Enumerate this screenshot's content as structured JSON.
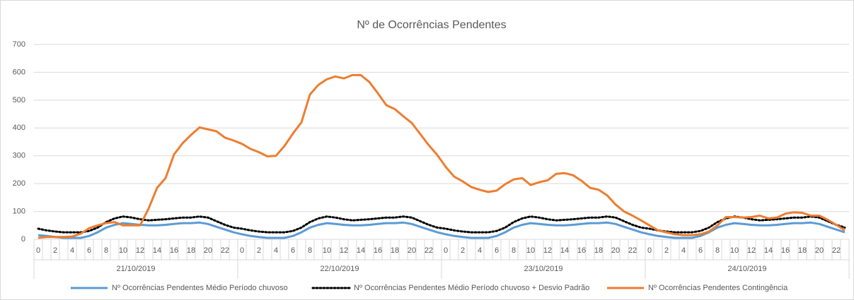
{
  "chart_data": {
    "type": "line",
    "title": "Nº de Ocorrências Pendentes",
    "categories": [
      "0",
      null,
      "2",
      null,
      "4",
      null,
      "6",
      null,
      "8",
      null,
      "10",
      null,
      "12",
      null,
      "14",
      null,
      "16",
      null,
      "18",
      null,
      "20",
      null,
      "22",
      null,
      "0",
      null,
      "2",
      null,
      "4",
      null,
      "6",
      null,
      "8",
      null,
      "10",
      null,
      "12",
      null,
      "14",
      null,
      "16",
      null,
      "18",
      null,
      "20",
      null,
      "22",
      null,
      "0",
      null,
      "2",
      null,
      "4",
      null,
      "6",
      null,
      "8",
      null,
      "10",
      null,
      "12",
      null,
      "14",
      null,
      "16",
      null,
      "18",
      null,
      "20",
      null,
      "22",
      null,
      "0",
      null,
      "2",
      null,
      "4",
      null,
      "6",
      null,
      "8",
      null,
      "10",
      null,
      "12",
      null,
      "14",
      null,
      "16",
      null,
      "18",
      null,
      "20",
      null,
      "22",
      null
    ],
    "category_groups": [
      "21/10/2019",
      "22/10/2019",
      "23/10/2019",
      "24/10/2019"
    ],
    "ylim": [
      0,
      700
    ],
    "yticks": [
      0,
      100,
      200,
      300,
      400,
      500,
      600,
      700
    ],
    "grid": true,
    "legend": "bottom",
    "series": [
      {
        "name": "Nº Ocorrências Pendentes Médio Período chuvoso",
        "color": "#5b9bd5",
        "style": "solid",
        "values": [
          15,
          12,
          8,
          5,
          5,
          5,
          12,
          25,
          42,
          52,
          58,
          55,
          52,
          50,
          50,
          52,
          55,
          58,
          58,
          60,
          55,
          45,
          35,
          25,
          18,
          12,
          8,
          5,
          5,
          5,
          12,
          25,
          42,
          52,
          58,
          55,
          52,
          50,
          50,
          52,
          55,
          58,
          58,
          60,
          55,
          45,
          35,
          25,
          18,
          12,
          8,
          5,
          5,
          5,
          12,
          25,
          42,
          52,
          58,
          55,
          52,
          50,
          50,
          52,
          55,
          58,
          58,
          60,
          55,
          45,
          35,
          25,
          18,
          12,
          8,
          5,
          5,
          5,
          12,
          25,
          42,
          52,
          58,
          55,
          52,
          50,
          50,
          52,
          55,
          58,
          58,
          60,
          55,
          45,
          35,
          25
        ]
      },
      {
        "name": "Nº Ocorrências Pendentes Médio Período chuvoso + Desvio Padrão",
        "color": "#000000",
        "style": "dotted",
        "values": [
          38,
          32,
          28,
          25,
          25,
          25,
          30,
          42,
          62,
          75,
          82,
          78,
          72,
          68,
          70,
          72,
          75,
          78,
          78,
          82,
          78,
          65,
          52,
          42,
          38,
          32,
          28,
          25,
          25,
          25,
          30,
          42,
          62,
          75,
          82,
          78,
          72,
          68,
          70,
          72,
          75,
          78,
          78,
          82,
          78,
          65,
          52,
          42,
          38,
          32,
          28,
          25,
          25,
          25,
          30,
          42,
          62,
          75,
          82,
          78,
          72,
          68,
          70,
          72,
          75,
          78,
          78,
          82,
          78,
          65,
          52,
          42,
          38,
          32,
          28,
          25,
          25,
          25,
          30,
          42,
          62,
          75,
          82,
          78,
          72,
          68,
          70,
          72,
          75,
          78,
          78,
          82,
          78,
          65,
          52,
          42
        ]
      },
      {
        "name": "Nº Ocorrências Pendentes Contingência",
        "color": "#ed7d31",
        "style": "solid",
        "values": [
          5,
          8,
          8,
          8,
          10,
          20,
          40,
          50,
          58,
          62,
          50,
          50,
          50,
          110,
          185,
          220,
          305,
          345,
          375,
          402,
          395,
          388,
          365,
          355,
          343,
          325,
          313,
          298,
          300,
          335,
          380,
          420,
          520,
          555,
          575,
          585,
          578,
          590,
          590,
          565,
          525,
          482,
          468,
          442,
          418,
          378,
          338,
          303,
          260,
          225,
          208,
          188,
          178,
          170,
          175,
          198,
          215,
          220,
          195,
          205,
          212,
          235,
          238,
          230,
          210,
          185,
          178,
          158,
          125,
          100,
          85,
          68,
          50,
          32,
          25,
          18,
          15,
          15,
          18,
          28,
          50,
          80,
          80,
          78,
          80,
          85,
          75,
          78,
          92,
          97,
          95,
          85,
          85,
          70,
          52,
          32
        ]
      }
    ]
  }
}
